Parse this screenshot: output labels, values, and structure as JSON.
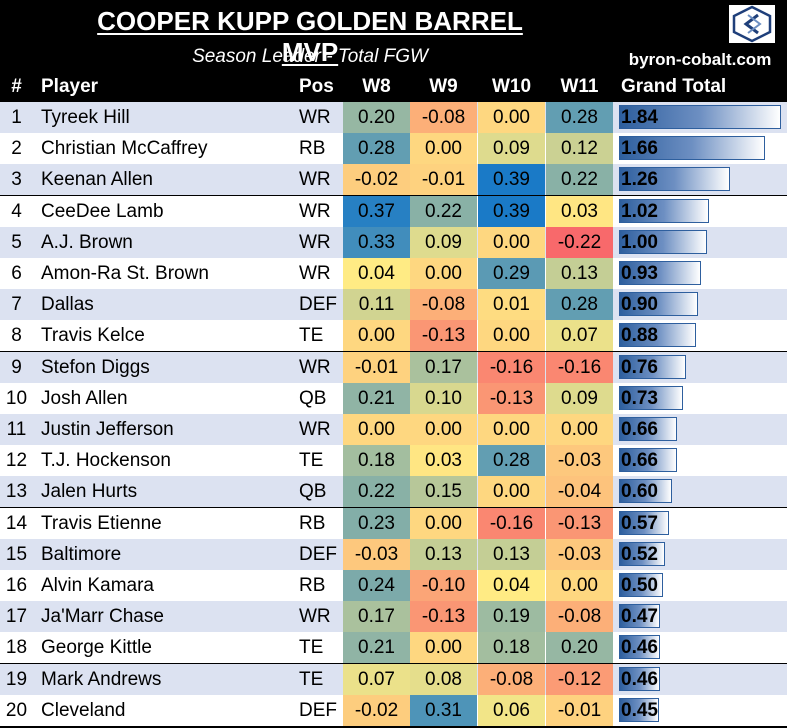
{
  "title": "COOPER KUPP GOLDEN BARREL MVP",
  "subtitle": "Season Leader - Total FGW",
  "site": "byron-cobalt.com",
  "logo_icon": "cobalt-hex-logo",
  "colors": {
    "band_a": "#dce2f1",
    "band_b": "#ffffff",
    "bar": "#2e5f9e",
    "low": "#f8696b",
    "mid": "#ffeb84",
    "high": "#1a7ac7"
  },
  "chart_data": {
    "type": "table",
    "headers": [
      "#",
      "Player",
      "Pos",
      "W8",
      "W9",
      "W10",
      "W11",
      "Grand Total"
    ],
    "color_scale": {
      "min": -0.22,
      "max": 0.39
    },
    "bar_max": 1.84,
    "rows": [
      {
        "rank": "1",
        "player": "Tyreek Hill",
        "pos": "WR",
        "weeks": [
          "0.20",
          "-0.08",
          "0.00",
          "0.28"
        ],
        "total": "1.84"
      },
      {
        "rank": "2",
        "player": "Christian McCaffrey",
        "pos": "RB",
        "weeks": [
          "0.28",
          "0.00",
          "0.09",
          "0.12"
        ],
        "total": "1.66"
      },
      {
        "rank": "3",
        "player": "Keenan Allen",
        "pos": "WR",
        "weeks": [
          "-0.02",
          "-0.01",
          "0.39",
          "0.22"
        ],
        "total": "1.26"
      },
      {
        "rank": "4",
        "player": "CeeDee Lamb",
        "pos": "WR",
        "weeks": [
          "0.37",
          "0.22",
          "0.39",
          "0.03"
        ],
        "total": "1.02"
      },
      {
        "rank": "5",
        "player": "A.J. Brown",
        "pos": "WR",
        "weeks": [
          "0.33",
          "0.09",
          "0.00",
          "-0.22"
        ],
        "total": "1.00"
      },
      {
        "rank": "6",
        "player": "Amon-Ra St. Brown",
        "pos": "WR",
        "weeks": [
          "0.04",
          "0.00",
          "0.29",
          "0.13"
        ],
        "total": "0.93"
      },
      {
        "rank": "7",
        "player": "Dallas",
        "pos": "DEF",
        "weeks": [
          "0.11",
          "-0.08",
          "0.01",
          "0.28"
        ],
        "total": "0.90"
      },
      {
        "rank": "8",
        "player": "Travis Kelce",
        "pos": "TE",
        "weeks": [
          "0.00",
          "-0.13",
          "0.00",
          "0.07"
        ],
        "total": "0.88"
      },
      {
        "rank": "9",
        "player": "Stefon Diggs",
        "pos": "WR",
        "weeks": [
          "-0.01",
          "0.17",
          "-0.16",
          "-0.16"
        ],
        "total": "0.76"
      },
      {
        "rank": "10",
        "player": "Josh Allen",
        "pos": "QB",
        "weeks": [
          "0.21",
          "0.10",
          "-0.13",
          "0.09"
        ],
        "total": "0.73"
      },
      {
        "rank": "11",
        "player": "Justin Jefferson",
        "pos": "WR",
        "weeks": [
          "0.00",
          "0.00",
          "0.00",
          "0.00"
        ],
        "total": "0.66"
      },
      {
        "rank": "12",
        "player": "T.J. Hockenson",
        "pos": "TE",
        "weeks": [
          "0.18",
          "0.03",
          "0.28",
          "-0.03"
        ],
        "total": "0.66"
      },
      {
        "rank": "13",
        "player": "Jalen Hurts",
        "pos": "QB",
        "weeks": [
          "0.22",
          "0.15",
          "0.00",
          "-0.04"
        ],
        "total": "0.60"
      },
      {
        "rank": "14",
        "player": "Travis Etienne",
        "pos": "RB",
        "weeks": [
          "0.23",
          "0.00",
          "-0.16",
          "-0.13"
        ],
        "total": "0.57"
      },
      {
        "rank": "15",
        "player": "Baltimore",
        "pos": "DEF",
        "weeks": [
          "-0.03",
          "0.13",
          "0.13",
          "-0.03"
        ],
        "total": "0.52"
      },
      {
        "rank": "16",
        "player": "Alvin Kamara",
        "pos": "RB",
        "weeks": [
          "0.24",
          "-0.10",
          "0.04",
          "0.00"
        ],
        "total": "0.50"
      },
      {
        "rank": "17",
        "player": "Ja'Marr Chase",
        "pos": "WR",
        "weeks": [
          "0.17",
          "-0.13",
          "0.19",
          "-0.08"
        ],
        "total": "0.47"
      },
      {
        "rank": "18",
        "player": "George Kittle",
        "pos": "TE",
        "weeks": [
          "0.21",
          "0.00",
          "0.18",
          "0.20"
        ],
        "total": "0.46"
      },
      {
        "rank": "19",
        "player": "Mark Andrews",
        "pos": "TE",
        "weeks": [
          "0.07",
          "0.08",
          "-0.08",
          "-0.12"
        ],
        "total": "0.46"
      },
      {
        "rank": "20",
        "player": "Cleveland",
        "pos": "DEF",
        "weeks": [
          "-0.02",
          "0.31",
          "0.06",
          "-0.01"
        ],
        "total": "0.45"
      }
    ]
  }
}
